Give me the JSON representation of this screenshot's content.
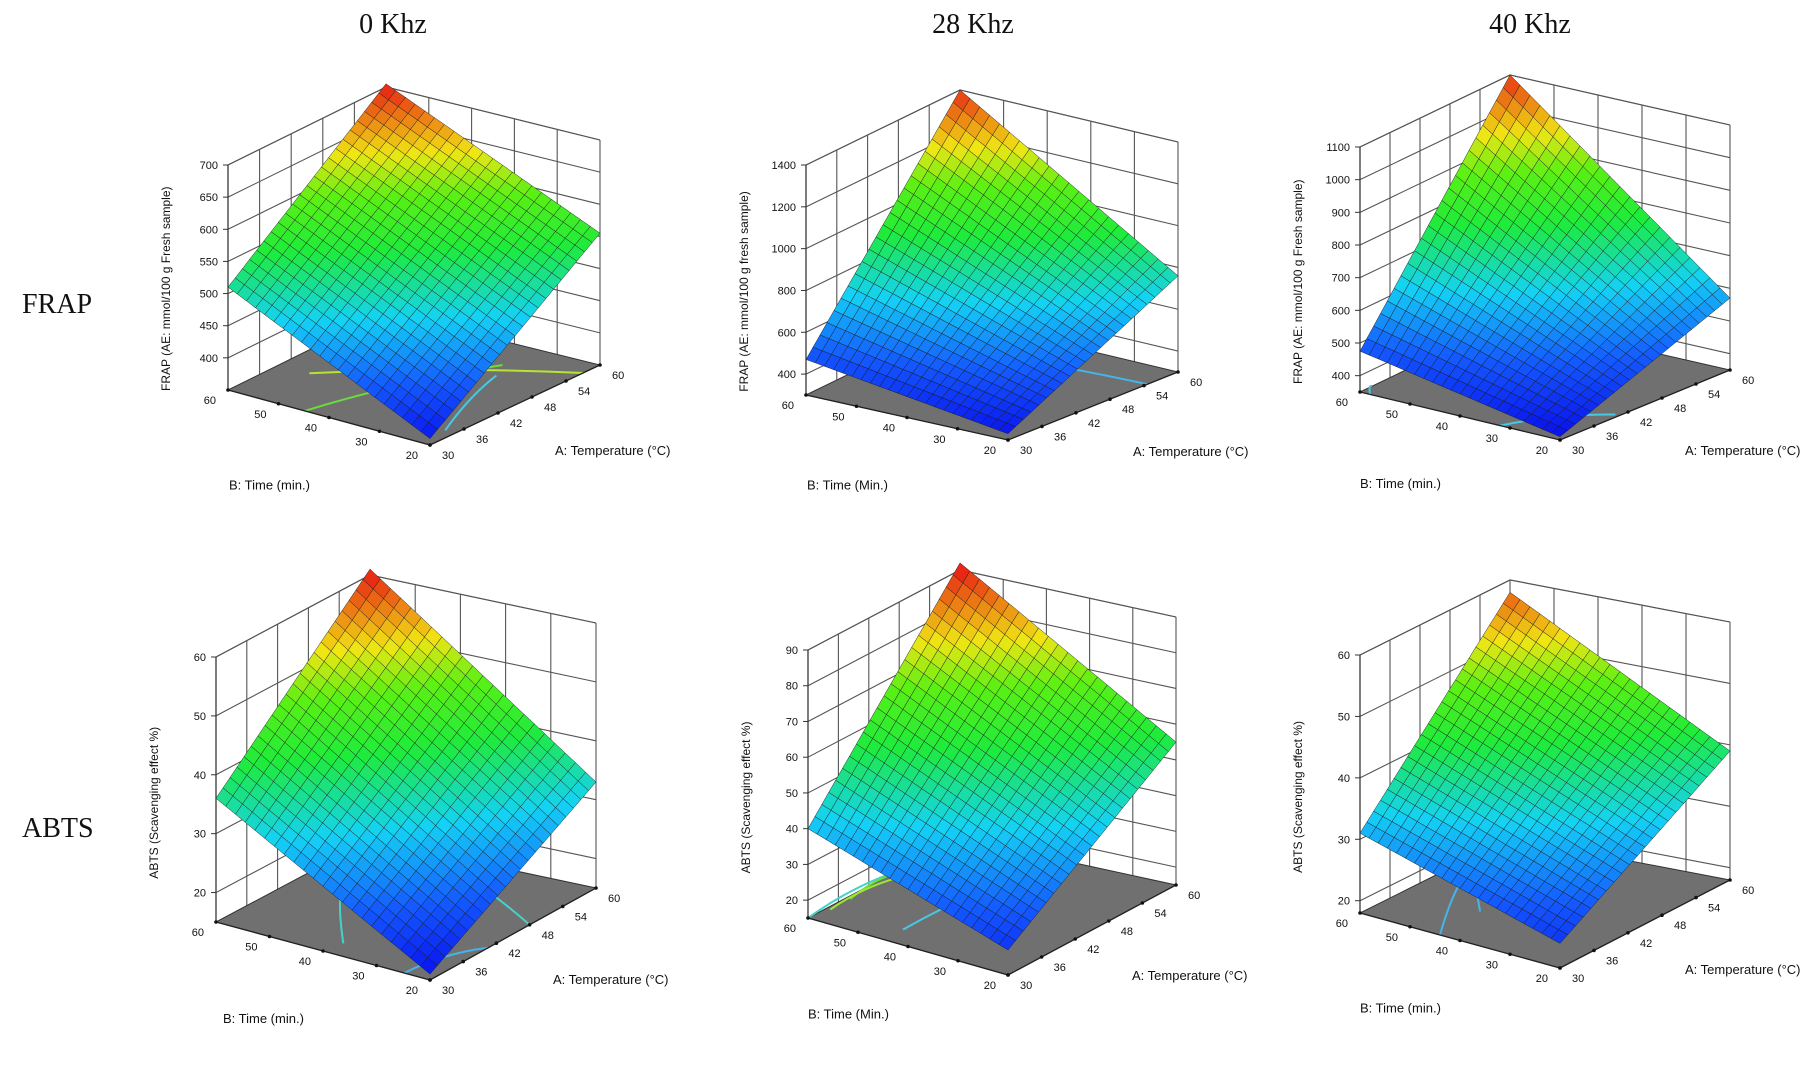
{
  "col_titles": [
    "0 Khz",
    "28 Khz",
    "40 Khz"
  ],
  "row_labels": [
    "FRAP",
    "ABTS"
  ],
  "chart_data": [
    {
      "type": "surface3d",
      "row": 0,
      "col": 0,
      "title": "0 Khz",
      "zlabel": "FRAP (AE: mmol/100 g Fresh sample)",
      "xlabel": "A: Temperature (°C)",
      "ylabel": "B: Time (min.)",
      "z_ticks": [
        400,
        450,
        500,
        550,
        600,
        650,
        700
      ],
      "zlim": [
        350,
        700
      ],
      "x_ticks": [
        30,
        36,
        42,
        48,
        54,
        60
      ],
      "xlim": [
        30,
        60
      ],
      "y_ticks": [
        20,
        30,
        40,
        50,
        60
      ],
      "ylim": [
        20,
        60
      ],
      "surface_corners": {
        "A30_B20": 360,
        "A60_B20": 555,
        "A30_B60": 510,
        "A60_B60": 705
      },
      "contours": [
        {
          "t": [
            0.7,
            0.15
          ],
          "u": [
            0.25,
            0.05
          ],
          "color": "#46c8e6"
        },
        {
          "t": [
            0.32,
            0.9
          ],
          "u": [
            0.85,
            0.0
          ],
          "color": "#b4e632"
        },
        {
          "t": [
            0.0,
            0.8
          ],
          "u": [
            0.62,
            0.3
          ],
          "color": "#6adc3c"
        },
        {
          "t": [
            0.9,
            0.6
          ],
          "u": [
            0.95,
            0.9
          ],
          "color": "#d2e628"
        }
      ]
    },
    {
      "type": "surface3d",
      "row": 0,
      "col": 1,
      "title": "28 Khz",
      "zlabel": "FRAP (AE: mmol/100 g fresh sample)",
      "xlabel": "A: Temperature (°C)",
      "ylabel": "B: Time (Min.)",
      "z_ticks": [
        400,
        600,
        800,
        1000,
        1200,
        1400
      ],
      "zlim": [
        300,
        1400
      ],
      "x_ticks": [
        30,
        36,
        42,
        48,
        54,
        60
      ],
      "xlim": [
        30,
        60
      ],
      "y_ticks": [
        20,
        30,
        40,
        50,
        60
      ],
      "ylim": [
        20,
        60
      ],
      "surface_corners": {
        "A30_B20": 330,
        "A60_B20": 760,
        "A30_B60": 470,
        "A60_B60": 1400
      },
      "contours": [
        {
          "t": [
            0.68,
            0.82
          ],
          "u": [
            1.0,
            0.0
          ],
          "color": "#46b4e6"
        }
      ]
    },
    {
      "type": "surface3d",
      "row": 0,
      "col": 2,
      "title": "40 Khz",
      "zlabel": "FRAP (AE: mmol/100 g Fresh sample)",
      "xlabel": "A: Temperature (°C)",
      "ylabel": "B: Time (min.)",
      "z_ticks": [
        400,
        500,
        600,
        700,
        800,
        900,
        1000,
        1100
      ],
      "zlim": [
        350,
        1100
      ],
      "x_ticks": [
        30,
        36,
        42,
        48,
        54,
        60
      ],
      "xlim": [
        30,
        60
      ],
      "y_ticks": [
        20,
        30,
        40,
        50,
        60
      ],
      "ylim": [
        20,
        60
      ],
      "surface_corners": {
        "A30_B20": 360,
        "A60_B20": 570,
        "A30_B60": 475,
        "A60_B60": 1100
      },
      "contours": [
        {
          "t": [
            0.0,
            0.35
          ],
          "u": [
            0.3,
            0.02
          ],
          "color": "#46c8e6"
        },
        {
          "t": [
            0.85,
            0.75
          ],
          "u": [
            0.98,
            0.8
          ],
          "color": "#46d2c8"
        },
        {
          "t": [
            0.0,
            0.08
          ],
          "u": [
            0.95,
            1.0
          ],
          "color": "#46c8e6"
        }
      ]
    },
    {
      "type": "surface3d",
      "row": 1,
      "col": 0,
      "title": "0 Khz",
      "zlabel": "ABTS (Scavenging effect %)",
      "xlabel": "A: Temperature (°C)",
      "ylabel": "B: Time (min.)",
      "z_ticks": [
        20,
        30,
        40,
        50,
        60
      ],
      "zlim": [
        15,
        60
      ],
      "x_ticks": [
        30,
        36,
        42,
        48,
        54,
        60
      ],
      "xlim": [
        30,
        60
      ],
      "y_ticks": [
        20,
        30,
        40,
        50,
        60
      ],
      "ylim": [
        20,
        60
      ],
      "surface_corners": {
        "A30_B20": 16,
        "A60_B20": 33,
        "A30_B60": 36,
        "A60_B60": 61
      },
      "contours": [
        {
          "t": [
            0.0,
            0.35
          ],
          "u": [
            0.12,
            0.0
          ],
          "color": "#46b4e6"
        },
        {
          "t": [
            0.45,
            0.1
          ],
          "u": [
            0.75,
            0.48
          ],
          "color": "#46d2c8"
        },
        {
          "t": [
            0.6,
            0.9
          ],
          "u": [
            0.0,
            0.55
          ],
          "color": "#46d2c8"
        }
      ]
    },
    {
      "type": "surface3d",
      "row": 1,
      "col": 1,
      "title": "28 Khz",
      "zlabel": "ABTS (Scavenging effect %)",
      "xlabel": "A: Temperature (°C)",
      "ylabel": "B: Time (Min.)",
      "z_ticks": [
        20,
        30,
        40,
        50,
        60,
        70,
        80,
        90
      ],
      "zlim": [
        15,
        90
      ],
      "x_ticks": [
        30,
        36,
        42,
        48,
        54,
        60
      ],
      "xlim": [
        30,
        60
      ],
      "y_ticks": [
        20,
        30,
        40,
        50,
        60
      ],
      "ylim": [
        20,
        60
      ],
      "surface_corners": {
        "A30_B20": 22,
        "A60_B20": 55,
        "A30_B60": 40,
        "A60_B60": 92
      },
      "contours": [
        {
          "t": [
            0.58,
            0.0
          ],
          "u": [
            1.0,
            1.0
          ],
          "color": "#46d2c8"
        },
        {
          "t": [
            0.12,
            0.95
          ],
          "u": [
            0.62,
            0.55
          ],
          "color": "#46c8e6"
        },
        {
          "t": [
            0.25,
            0.62
          ],
          "u": [
            0.98,
            0.98
          ],
          "color": "#6adc3c"
        },
        {
          "t": [
            0.12,
            0.55
          ],
          "u": [
            0.98,
            0.95
          ],
          "color": "#a0e632"
        }
      ]
    },
    {
      "type": "surface3d",
      "row": 1,
      "col": 2,
      "title": "40 Khz",
      "zlabel": "ABTS (Scavenging effect %)",
      "xlabel": "A: Temperature (°C)",
      "ylabel": "B: Time (min.)",
      "z_ticks": [
        20,
        30,
        40,
        50,
        60
      ],
      "zlim": [
        18,
        60
      ],
      "x_ticks": [
        30,
        36,
        42,
        48,
        54,
        60
      ],
      "xlim": [
        30,
        60
      ],
      "y_ticks": [
        20,
        30,
        40,
        50,
        60
      ],
      "ylim": [
        20,
        60
      ],
      "surface_corners": {
        "A30_B20": 22,
        "A60_B20": 39,
        "A30_B60": 31,
        "A60_B60": 58
      },
      "contours": [
        {
          "t": [
            0.0,
            0.55
          ],
          "u": [
            0.6,
            0.9
          ],
          "color": "#46b4e6"
        },
        {
          "t": [
            0.72,
            0.28
          ],
          "u": [
            0.98,
            0.62
          ],
          "color": "#46b4e6"
        }
      ]
    }
  ]
}
